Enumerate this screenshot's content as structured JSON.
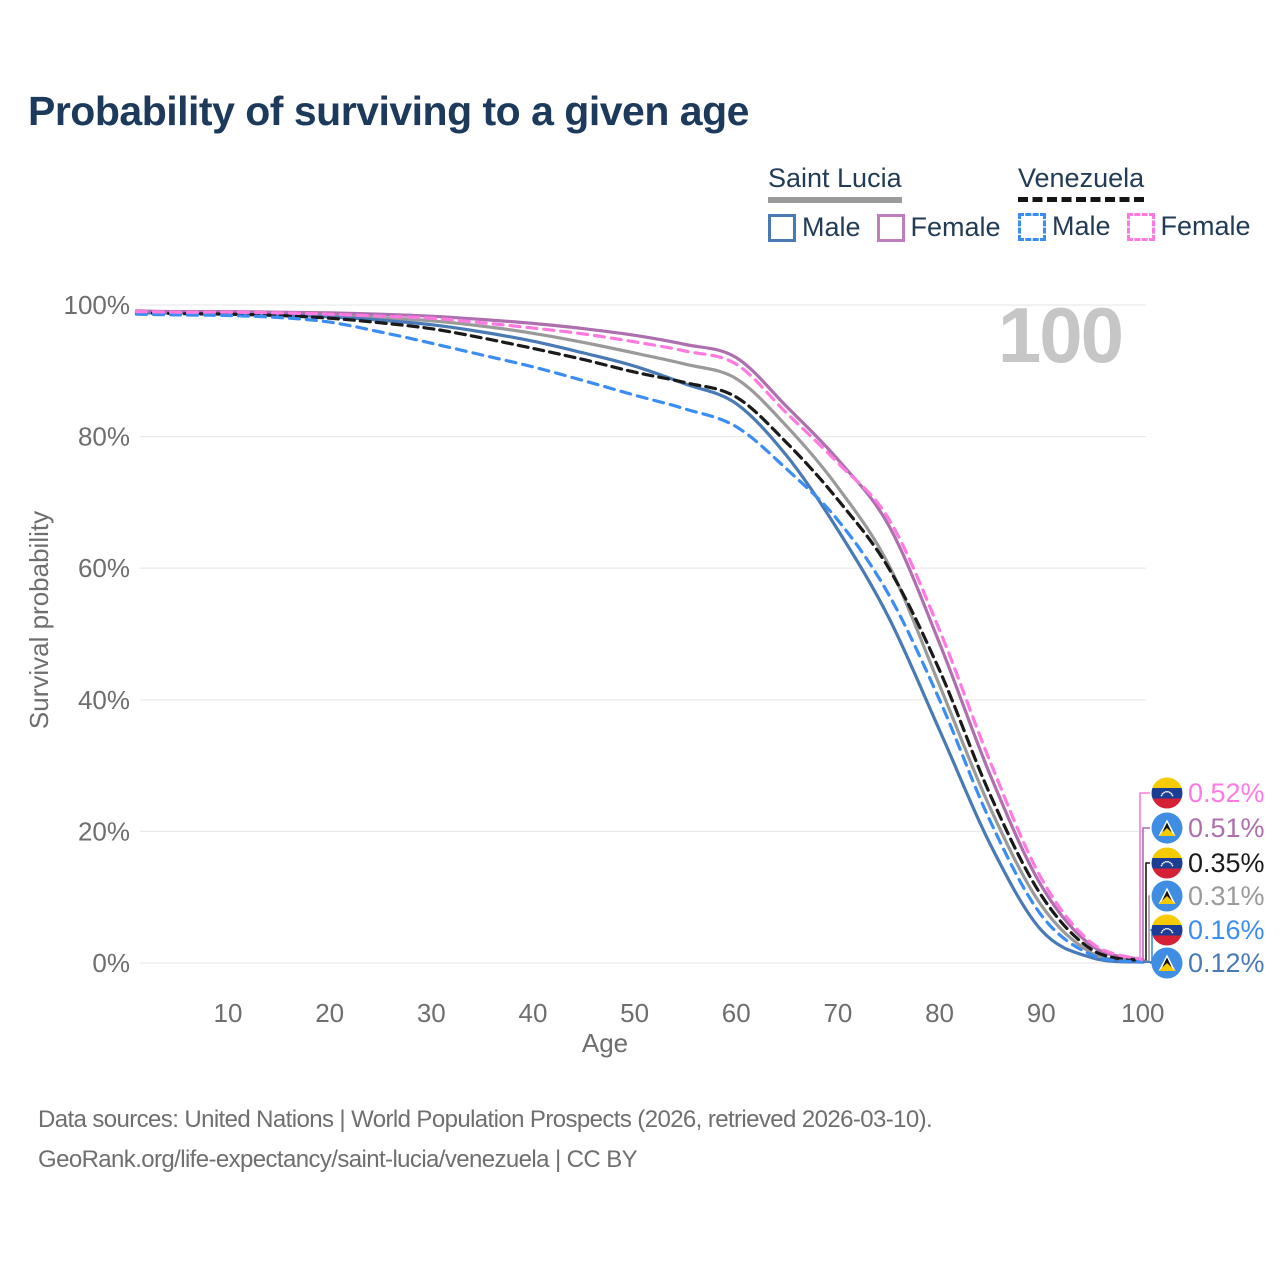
{
  "title": "Probability of surviving to a given age",
  "watermark": "100",
  "legend": {
    "saint_lucia": {
      "name": "Saint Lucia",
      "male_label": "Male",
      "female_label": "Female"
    },
    "venezuela": {
      "name": "Venezuela",
      "male_label": "Male",
      "female_label": "Female"
    }
  },
  "chart_data": {
    "type": "line",
    "title": "Probability of surviving to a given age",
    "xlabel": "Age",
    "ylabel": "Survival probability",
    "xlim": [
      1,
      100
    ],
    "ylim": [
      0,
      100
    ],
    "x_ticks": [
      10,
      20,
      30,
      40,
      50,
      60,
      70,
      80,
      90,
      100
    ],
    "y_ticks_percent": [
      0,
      20,
      40,
      60,
      80,
      100
    ],
    "grid": "horizontal",
    "legend_position": "top-right",
    "x": [
      1,
      5,
      10,
      15,
      20,
      25,
      30,
      35,
      40,
      45,
      50,
      55,
      60,
      65,
      70,
      75,
      80,
      85,
      90,
      95,
      100
    ],
    "series": [
      {
        "name": "Saint Lucia",
        "country": "Saint Lucia",
        "group": "all",
        "color": "#9a9a9a",
        "dash": "solid",
        "end_value": "0.31%",
        "values": [
          98.9,
          98.9,
          98.8,
          98.7,
          98.5,
          98.1,
          97.6,
          96.8,
          95.7,
          94.3,
          92.7,
          91.0,
          88.8,
          81.5,
          72.3,
          60.5,
          42.2,
          23.5,
          8.8,
          1.5,
          0.31
        ]
      },
      {
        "name": "Venezuela",
        "country": "Venezuela",
        "group": "all",
        "color": "#1a1a1a",
        "dash": "dashed",
        "end_value": "0.35%",
        "values": [
          98.8,
          98.7,
          98.6,
          98.4,
          98.0,
          97.3,
          96.4,
          95.0,
          93.4,
          91.7,
          89.8,
          88.2,
          86.0,
          79.0,
          70.4,
          60.0,
          44.5,
          25.5,
          10.3,
          2.0,
          0.35
        ]
      },
      {
        "name": "Saint Lucia Male",
        "country": "Saint Lucia",
        "group": "male",
        "color": "#4a7ab5",
        "dash": "solid",
        "end_value": "0.12%",
        "values": [
          98.8,
          98.8,
          98.7,
          98.5,
          98.2,
          97.7,
          97.0,
          95.9,
          94.5,
          92.7,
          90.7,
          88.0,
          85.0,
          77.0,
          65.8,
          52.5,
          35.4,
          18.0,
          5.0,
          0.8,
          0.12
        ]
      },
      {
        "name": "Saint Lucia Female",
        "country": "Saint Lucia",
        "group": "female",
        "color": "#ad6fad",
        "dash": "solid",
        "end_value": "0.51%",
        "values": [
          99.1,
          99.0,
          99.0,
          98.9,
          98.8,
          98.6,
          98.3,
          97.8,
          97.2,
          96.4,
          95.4,
          94.0,
          92.0,
          84.5,
          76.5,
          66.5,
          48.6,
          28.5,
          11.8,
          2.6,
          0.51
        ]
      },
      {
        "name": "Venezuela Male",
        "country": "Venezuela",
        "group": "male",
        "color": "#3c8df2",
        "dash": "dashed",
        "end_value": "0.16%",
        "values": [
          98.6,
          98.5,
          98.4,
          98.1,
          97.4,
          95.9,
          94.2,
          92.4,
          90.6,
          88.5,
          86.3,
          84.2,
          81.5,
          75.0,
          67.3,
          56.0,
          40.0,
          21.5,
          7.3,
          1.2,
          0.16
        ]
      },
      {
        "name": "Venezuela Female",
        "country": "Venezuela",
        "group": "female",
        "color": "#ff7ae0",
        "dash": "dashed",
        "end_value": "0.52%",
        "values": [
          99.0,
          98.9,
          98.9,
          98.8,
          98.6,
          98.3,
          98.0,
          97.3,
          96.5,
          95.6,
          94.4,
          93.0,
          91.0,
          83.5,
          76.0,
          67.5,
          50.6,
          30.5,
          12.9,
          3.0,
          0.52
        ]
      }
    ]
  },
  "end_labels": [
    {
      "text": "0.52%",
      "series": "Venezuela Female",
      "flag": "venezuela",
      "color": "#ff7ae0"
    },
    {
      "text": "0.51%",
      "series": "Saint Lucia Female",
      "flag": "saint-lucia",
      "color": "#ad6fad"
    },
    {
      "text": "0.35%",
      "series": "Venezuela",
      "flag": "venezuela",
      "color": "#1a1a1a"
    },
    {
      "text": "0.31%",
      "series": "Saint Lucia",
      "flag": "saint-lucia",
      "color": "#9a9a9a"
    },
    {
      "text": "0.16%",
      "series": "Venezuela Male",
      "flag": "venezuela",
      "color": "#3c8df2"
    },
    {
      "text": "0.12%",
      "series": "Saint Lucia Male",
      "flag": "saint-lucia",
      "color": "#4a7ab5"
    }
  ],
  "source": {
    "line1": "Data sources: United Nations | World Population Prospects (2026, retrieved 2026-03-10).",
    "line2": "GeoRank.org/life-expectancy/saint-lucia/venezuela | CC BY"
  }
}
